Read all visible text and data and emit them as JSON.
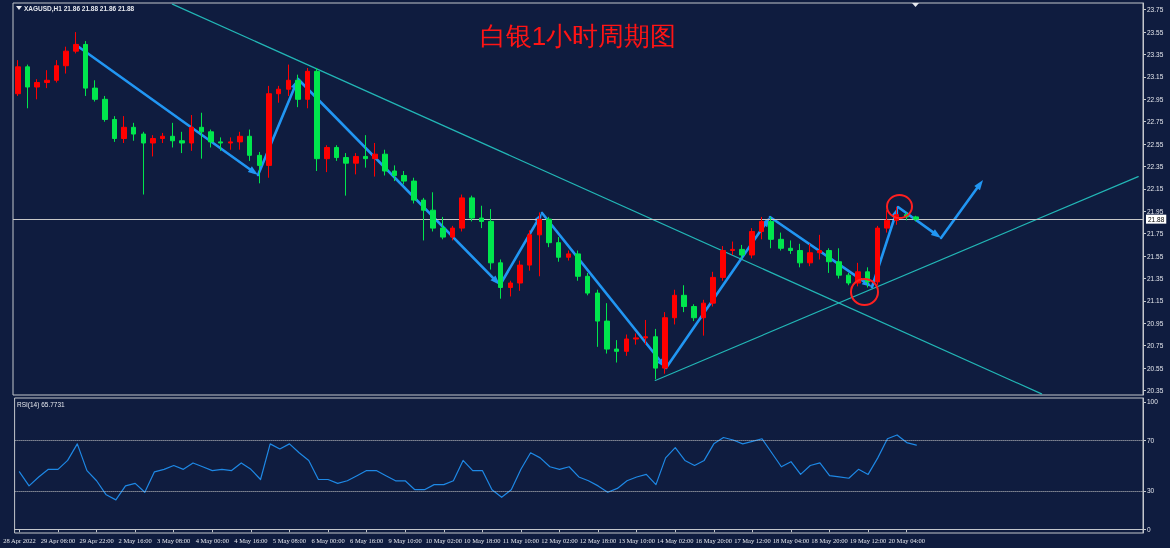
{
  "chart_data": [
    {
      "type": "candlestick",
      "title": "白银1小时周期图",
      "annotations": [
        "XAGUSD,H1 21.86 21.88 21.86 21.88"
      ],
      "categories": [
        null,
        null,
        null,
        null,
        null,
        null,
        null,
        null,
        null,
        null,
        null,
        null,
        null,
        null,
        null,
        null,
        null,
        null,
        null,
        null,
        null,
        null,
        null,
        null,
        null,
        null,
        null,
        null,
        null,
        null,
        null,
        null,
        null,
        null,
        null,
        null,
        null,
        null,
        null,
        null,
        null,
        null,
        null,
        null,
        null,
        null,
        null,
        null,
        null,
        null,
        null,
        null,
        null,
        null,
        null,
        null,
        null,
        null,
        null,
        null,
        null,
        null,
        null,
        null,
        null,
        null,
        null,
        null,
        null,
        null,
        null,
        null,
        null,
        null,
        null,
        null,
        null,
        null,
        null,
        null,
        null,
        null,
        null,
        null,
        null,
        null,
        null,
        null,
        null,
        null,
        null,
        null,
        null,
        null,
        null,
        null,
        null,
        null,
        null,
        null,
        null,
        null,
        null,
        null,
        null,
        null,
        null,
        null,
        null,
        null,
        null,
        null,
        null,
        null,
        null,
        null,
        null
      ],
      "ohlc": [
        [
          23.0,
          23.3,
          22.98,
          23.24
        ],
        [
          23.24,
          23.26,
          22.87,
          23.06
        ],
        [
          23.06,
          23.13,
          22.95,
          23.1
        ],
        [
          23.1,
          23.21,
          23.05,
          23.12
        ],
        [
          23.12,
          23.3,
          23.1,
          23.25
        ],
        [
          23.25,
          23.42,
          23.18,
          23.38
        ],
        [
          23.38,
          23.55,
          23.36,
          23.44
        ],
        [
          23.44,
          23.47,
          22.98,
          23.05
        ],
        [
          23.05,
          23.12,
          22.93,
          22.95
        ],
        [
          22.95,
          22.98,
          22.75,
          22.77
        ],
        [
          22.77,
          22.8,
          22.57,
          22.6
        ],
        [
          22.6,
          22.8,
          22.56,
          22.7
        ],
        [
          22.7,
          22.74,
          22.58,
          22.64
        ],
        [
          22.64,
          22.66,
          22.1,
          22.56
        ],
        [
          22.56,
          22.63,
          22.44,
          22.6
        ],
        [
          22.6,
          22.65,
          22.56,
          22.62
        ],
        [
          22.62,
          22.74,
          22.52,
          22.58
        ],
        [
          22.58,
          22.66,
          22.47,
          22.56
        ],
        [
          22.56,
          22.81,
          22.49,
          22.7
        ],
        [
          22.7,
          22.83,
          22.42,
          22.66
        ],
        [
          22.66,
          22.68,
          22.52,
          22.57
        ],
        [
          22.57,
          22.61,
          22.49,
          22.56
        ],
        [
          22.56,
          22.61,
          22.5,
          22.57
        ],
        [
          22.57,
          22.66,
          22.5,
          22.62
        ],
        [
          22.62,
          22.68,
          22.4,
          22.45
        ],
        [
          22.45,
          22.48,
          22.2,
          22.36
        ],
        [
          22.36,
          23.07,
          22.25,
          23.0
        ],
        [
          23.0,
          23.07,
          22.92,
          23.04
        ],
        [
          23.04,
          23.26,
          22.98,
          23.12
        ],
        [
          23.12,
          23.17,
          22.88,
          22.95
        ],
        [
          22.95,
          23.23,
          22.87,
          23.2
        ],
        [
          23.2,
          23.23,
          22.31,
          22.42
        ],
        [
          22.42,
          22.54,
          22.3,
          22.52
        ],
        [
          22.52,
          22.54,
          22.4,
          22.43
        ],
        [
          22.43,
          22.47,
          22.09,
          22.38
        ],
        [
          22.38,
          22.47,
          22.28,
          22.44
        ],
        [
          22.44,
          22.63,
          22.34,
          22.42
        ],
        [
          22.42,
          22.56,
          22.26,
          22.46
        ],
        [
          22.46,
          22.5,
          22.27,
          22.31
        ],
        [
          22.31,
          22.36,
          22.22,
          22.27
        ],
        [
          22.27,
          22.31,
          22.19,
          22.22
        ],
        [
          22.22,
          22.25,
          22.02,
          22.05
        ],
        [
          22.05,
          22.07,
          21.69,
          21.96
        ],
        [
          21.96,
          22.12,
          21.77,
          21.8
        ],
        [
          21.8,
          21.9,
          21.7,
          21.72
        ],
        [
          21.72,
          21.82,
          21.69,
          21.8
        ],
        [
          21.8,
          22.1,
          21.77,
          22.07
        ],
        [
          22.07,
          22.09,
          21.86,
          21.89
        ],
        [
          21.89,
          22.0,
          21.8,
          21.86
        ],
        [
          21.86,
          21.97,
          21.43,
          21.49
        ],
        [
          21.49,
          21.52,
          21.17,
          21.27
        ],
        [
          21.27,
          21.33,
          21.19,
          21.31
        ],
        [
          21.31,
          21.51,
          21.24,
          21.47
        ],
        [
          21.47,
          21.78,
          21.42,
          21.74
        ],
        [
          21.74,
          21.94,
          21.37,
          21.88
        ],
        [
          21.88,
          21.9,
          21.63,
          21.67
        ],
        [
          21.67,
          21.72,
          21.5,
          21.54
        ],
        [
          21.54,
          21.6,
          21.51,
          21.57
        ],
        [
          21.57,
          21.6,
          21.33,
          21.37
        ],
        [
          21.37,
          21.4,
          21.2,
          21.22
        ],
        [
          21.22,
          21.25,
          20.74,
          20.97
        ],
        [
          20.97,
          21.13,
          20.68,
          20.72
        ],
        [
          20.72,
          20.8,
          20.6,
          20.7
        ],
        [
          20.7,
          20.85,
          20.66,
          20.81
        ],
        [
          20.81,
          20.86,
          20.76,
          20.82
        ],
        [
          20.82,
          20.98,
          20.76,
          20.83
        ],
        [
          20.83,
          20.9,
          20.45,
          20.55
        ],
        [
          20.55,
          21.05,
          20.5,
          21.0
        ],
        [
          21.0,
          21.25,
          20.94,
          21.2
        ],
        [
          21.2,
          21.29,
          21.05,
          21.1
        ],
        [
          21.1,
          21.12,
          20.97,
          21.0
        ],
        [
          21.0,
          21.16,
          20.84,
          21.13
        ],
        [
          21.13,
          21.41,
          21.1,
          21.36
        ],
        [
          21.36,
          21.64,
          21.33,
          21.6
        ],
        [
          21.6,
          21.68,
          21.56,
          21.61
        ],
        [
          21.61,
          21.65,
          21.53,
          21.56
        ],
        [
          21.56,
          21.8,
          21.53,
          21.77
        ],
        [
          21.77,
          21.9,
          21.7,
          21.86
        ],
        [
          21.86,
          21.9,
          21.62,
          21.7
        ],
        [
          21.7,
          21.76,
          21.6,
          21.62
        ],
        [
          21.62,
          21.69,
          21.57,
          21.6
        ],
        [
          21.6,
          21.66,
          21.45,
          21.49
        ],
        [
          21.49,
          21.66,
          21.46,
          21.58
        ],
        [
          21.58,
          21.74,
          21.52,
          21.6
        ],
        [
          21.6,
          21.62,
          21.4,
          21.5
        ],
        [
          21.5,
          21.62,
          21.35,
          21.38
        ],
        [
          21.38,
          21.4,
          21.29,
          21.31
        ],
        [
          21.31,
          21.49,
          21.28,
          21.41
        ],
        [
          21.41,
          21.45,
          21.27,
          21.32
        ],
        [
          21.32,
          21.82,
          21.29,
          21.8
        ],
        [
          21.8,
          21.96,
          21.76,
          21.87
        ],
        [
          21.87,
          21.99,
          21.83,
          21.92
        ],
        [
          21.92,
          21.94,
          21.87,
          21.9
        ],
        [
          21.9,
          21.91,
          21.86,
          21.88
        ],
        null,
        null,
        null,
        null,
        null,
        null,
        null,
        null,
        null,
        null,
        null,
        null,
        null,
        null,
        null,
        null,
        null,
        null,
        null,
        null,
        null,
        null,
        null
      ],
      "colors": [
        "#ff0000",
        "#00e64d",
        "#ff0000",
        "#ff0000",
        "#ff0000",
        "#ff0000",
        "#ff0000",
        "#00e64d",
        "#00e64d",
        "#00e64d",
        "#00e64d",
        "#ff0000",
        "#00e64d",
        "#00e64d",
        "#ff0000",
        "#ff0000",
        "#00e64d",
        "#00e64d",
        "#ff0000",
        "#00e64d",
        "#00e64d",
        "#00e64d",
        "#ff0000",
        "#ff0000",
        "#00e64d",
        "#00e64d",
        "#ff0000",
        "#ff0000",
        "#ff0000",
        "#00e64d",
        "#ff0000",
        "#00e64d",
        "#ff0000",
        "#00e64d",
        "#00e64d",
        "#ff0000",
        "#00e64d",
        "#ff0000",
        "#00e64d",
        "#00e64d",
        "#00e64d",
        "#00e64d",
        "#00e64d",
        "#00e64d",
        "#00e64d",
        "#ff0000",
        "#ff0000",
        "#00e64d",
        "#00e64d",
        "#00e64d",
        "#00e64d",
        "#ff0000",
        "#ff0000",
        "#ff0000",
        "#ff0000",
        "#00e64d",
        "#00e64d",
        "#ff0000",
        "#00e64d",
        "#00e64d",
        "#00e64d",
        "#00e64d",
        "#00e64d",
        "#ff0000",
        "#ff0000",
        "#ff0000",
        "#00e64d",
        "#ff0000",
        "#ff0000",
        "#00e64d",
        "#00e64d",
        "#ff0000",
        "#ff0000",
        "#ff0000",
        "#ff0000",
        "#00e64d",
        "#ff0000",
        "#ff0000",
        "#00e64d",
        "#00e64d",
        "#00e64d",
        "#00e64d",
        "#ff0000",
        "#ff0000",
        "#00e64d",
        "#00e64d",
        "#00e64d",
        "#ff0000",
        "#00e64d",
        "#ff0000",
        "#ff0000",
        "#ff0000",
        "#00e64d",
        "#00e64d",
        null,
        null,
        null,
        null,
        null,
        null,
        null,
        null,
        null,
        null,
        null,
        null,
        null,
        null,
        null,
        null,
        null,
        null,
        null,
        null,
        null,
        null,
        null
      ],
      "series": [
        {
          "type": "line",
          "color": "#22b5b5",
          "values": [
            null,
            null,
            null,
            null,
            null,
            null,
            null,
            null,
            null,
            null,
            null,
            null,
            null,
            null,
            null,
            null,
            23.8,
            null,
            null,
            null,
            null,
            null,
            null,
            null,
            null,
            null,
            null,
            null,
            null,
            null,
            null,
            null,
            null,
            null,
            null,
            null,
            null,
            null,
            null,
            null,
            null,
            null,
            null,
            null,
            null,
            null,
            null,
            null,
            null,
            null,
            null,
            null,
            null,
            null,
            null,
            null,
            null,
            null,
            null,
            null,
            null,
            null,
            null,
            null,
            null,
            null,
            null,
            null,
            null,
            null,
            null,
            null,
            null,
            null,
            null,
            null,
            null,
            null,
            null,
            null,
            null,
            null,
            null,
            null,
            null,
            null,
            null,
            null,
            null,
            null,
            null,
            null,
            null,
            null,
            null,
            null,
            null,
            null,
            null,
            null,
            null,
            null,
            null,
            null,
            null,
            null,
            20.32,
            null,
            null,
            null,
            null,
            null,
            null,
            null,
            null,
            null,
            null
          ]
        },
        {
          "type": "line",
          "color": "#22b5b5",
          "values": [
            null,
            null,
            null,
            null,
            null,
            null,
            null,
            null,
            null,
            null,
            null,
            null,
            null,
            null,
            null,
            null,
            null,
            null,
            null,
            null,
            null,
            null,
            null,
            null,
            null,
            null,
            null,
            null,
            null,
            null,
            null,
            null,
            null,
            null,
            null,
            null,
            null,
            null,
            null,
            null,
            null,
            null,
            null,
            null,
            null,
            null,
            null,
            null,
            null,
            null,
            null,
            null,
            null,
            null,
            null,
            null,
            null,
            null,
            null,
            null,
            null,
            null,
            null,
            null,
            null,
            null,
            20.44,
            null,
            null,
            null,
            null,
            null,
            null,
            null,
            null,
            null,
            null,
            null,
            null,
            null,
            null,
            null,
            null,
            null,
            null,
            null,
            null,
            null,
            null,
            null,
            null,
            null,
            null,
            null,
            null,
            null,
            null,
            null,
            null,
            null,
            null,
            null,
            null,
            null,
            null,
            null,
            null,
            null,
            null,
            null,
            null,
            null,
            null,
            null,
            null,
            null,
            22.26
          ]
        }
      ],
      "ylim": [
        20.31,
        23.81
      ],
      "yticks": [
        20.35,
        20.55,
        20.75,
        20.95,
        21.15,
        21.35,
        21.55,
        21.75,
        21.95,
        22.15,
        22.35,
        22.55,
        22.75,
        22.95,
        23.15,
        23.35,
        23.55,
        23.75
      ],
      "ref_lines": [
        {
          "axis": "y",
          "value": 21.88,
          "label": "21.88",
          "color": "#c8c8c8"
        }
      ],
      "tick_labels": "y"
    },
    {
      "type": "line",
      "title": "RSI(14) 65.7731",
      "categories": [
        "28 Apr 2022",
        null,
        null,
        null,
        "29 Apr 06:00",
        null,
        null,
        null,
        "29 Apr 22:00",
        null,
        null,
        null,
        "2 May 16:00",
        null,
        null,
        null,
        "3 May 08:00",
        null,
        null,
        null,
        "4 May 00:00",
        null,
        null,
        null,
        "4 May 16:00",
        null,
        null,
        null,
        "5 May 08:00",
        null,
        null,
        null,
        "6 May 00:00",
        null,
        null,
        null,
        "6 May 16:00",
        null,
        null,
        null,
        "9 May 10:00",
        null,
        null,
        null,
        "10 May 02:00",
        null,
        null,
        null,
        "10 May 18:00",
        null,
        null,
        null,
        "11 May 10:00",
        null,
        null,
        null,
        "12 May 02:00",
        null,
        null,
        null,
        "12 May 18:00",
        null,
        null,
        null,
        "13 May 10:00",
        null,
        null,
        null,
        "14 May 02:00",
        null,
        null,
        null,
        "16 May 20:00",
        null,
        null,
        null,
        "17 May 12:00",
        null,
        null,
        null,
        "18 May 04:00",
        null,
        null,
        null,
        "18 May 20:00",
        null,
        null,
        null,
        "19 May 12:00",
        null,
        null,
        null,
        "20 May 04:00",
        null,
        null,
        null,
        null,
        null,
        null,
        null,
        null,
        null,
        null,
        null,
        null,
        null,
        null,
        null,
        null,
        null,
        null,
        null,
        null,
        null,
        null,
        null,
        null
      ],
      "series": [
        {
          "color": "#1e88e5",
          "values": [
            45,
            34,
            41,
            47,
            47,
            54,
            67,
            46,
            38,
            27,
            23,
            34,
            36,
            29,
            45,
            47,
            50,
            47,
            52,
            49,
            46,
            47,
            46,
            52,
            47,
            39,
            67,
            63,
            67,
            60,
            54,
            39,
            39,
            36,
            38,
            42,
            46,
            46,
            42,
            38,
            38,
            31,
            31,
            35,
            35,
            38,
            54,
            46,
            46,
            31,
            25,
            31,
            47,
            60,
            56,
            49,
            47,
            49,
            41,
            38,
            34,
            29,
            32,
            38,
            41,
            43,
            35,
            56,
            64,
            54,
            50,
            54,
            67,
            72,
            70,
            67,
            69,
            71,
            60,
            49,
            53,
            43,
            50,
            52,
            42,
            41,
            40,
            47,
            43,
            56,
            71,
            74,
            68,
            66,
            null,
            null,
            null,
            null,
            null,
            null,
            null,
            null,
            null,
            null,
            null,
            null,
            null,
            null,
            null,
            null,
            null,
            null,
            null,
            null,
            null,
            null,
            null
          ]
        }
      ],
      "ylim": [
        -3,
        103
      ],
      "yticks": [
        0,
        30,
        70,
        100
      ],
      "ref_lines": [
        {
          "axis": "y",
          "value": 70,
          "color": "#c8c8c8",
          "line_style": "dotted"
        },
        {
          "axis": "y",
          "value": 30,
          "color": "#c8c8c8",
          "line_style": "dotted"
        }
      ]
    }
  ]
}
